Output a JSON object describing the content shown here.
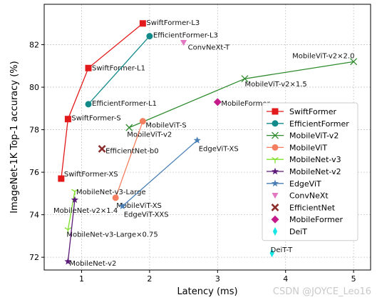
{
  "chart_data": {
    "type": "scatter",
    "title": "",
    "xlabel": "Latency (ms)",
    "ylabel": "ImageNet-1K Top-1 accuracy (%)",
    "xlim": [
      0.45,
      5.25
    ],
    "ylim": [
      71.4,
      83.9
    ],
    "xticks": [
      1,
      2,
      3,
      4,
      5
    ],
    "yticks": [
      72,
      74,
      76,
      78,
      80,
      82
    ],
    "grid": true,
    "legend_position": "center-right",
    "series": [
      {
        "name": "SwiftFormer",
        "color": "#e31a1c",
        "marker": "square",
        "line": true,
        "points": [
          {
            "x": 0.7,
            "y": 75.7,
            "label": "SwiftFormer-XS"
          },
          {
            "x": 0.8,
            "y": 78.5,
            "label": "SwiftFormer-S"
          },
          {
            "x": 1.1,
            "y": 80.9,
            "label": "SwiftFormer-L1"
          },
          {
            "x": 1.9,
            "y": 83.0,
            "label": "SwiftFormer-L3"
          }
        ]
      },
      {
        "name": "EfficientFormer",
        "color": "#138a8a",
        "marker": "circle",
        "line": true,
        "points": [
          {
            "x": 1.1,
            "y": 79.2,
            "label": "EfficientFormer-L1"
          },
          {
            "x": 2.0,
            "y": 82.4,
            "label": "EfficientFormer-L3"
          }
        ]
      },
      {
        "name": "MobileViT-v2",
        "color": "#2e8b2e",
        "marker": "x",
        "line": true,
        "points": [
          {
            "x": 1.7,
            "y": 78.1,
            "label": "MobileViT-v2"
          },
          {
            "x": 3.4,
            "y": 80.4,
            "label": "MobileViT-v2×1.5"
          },
          {
            "x": 5.0,
            "y": 81.2,
            "label": "MobileViT-v2×2.0"
          }
        ]
      },
      {
        "name": "MobileViT",
        "color": "#f47f60",
        "marker": "circle",
        "line": true,
        "points": [
          {
            "x": 1.5,
            "y": 74.8,
            "label": "MobileViT-XS"
          },
          {
            "x": 1.9,
            "y": 78.4,
            "label": "MobileViT-S"
          }
        ]
      },
      {
        "name": "MobileNet-v3",
        "color": "#7ee02a",
        "marker": "tri_down",
        "line": true,
        "points": [
          {
            "x": 0.8,
            "y": 73.3,
            "label": "MobileNet-v3-Large×0.75"
          },
          {
            "x": 0.9,
            "y": 75.1,
            "label": "MobileNet-v3-Large"
          }
        ]
      },
      {
        "name": "MobileNet-v2",
        "color": "#5b1a78",
        "marker": "star",
        "line": true,
        "points": [
          {
            "x": 0.8,
            "y": 71.8,
            "label": "MobileNet-v2"
          },
          {
            "x": 0.9,
            "y": 74.7,
            "label": "MobileNet-v2×1.4"
          }
        ]
      },
      {
        "name": "EdgeViT",
        "color": "#4a7fb5",
        "marker": "star",
        "line": true,
        "points": [
          {
            "x": 1.6,
            "y": 74.4,
            "label": "EdgeViT-XXS"
          },
          {
            "x": 2.7,
            "y": 77.5,
            "label": "EdgeViT-XS"
          }
        ]
      },
      {
        "name": "ConvNeXt",
        "color": "#e377c2",
        "marker": "triangle_down",
        "line": false,
        "points": [
          {
            "x": 2.5,
            "y": 82.1,
            "label": "ConvNeXt-T"
          }
        ]
      },
      {
        "name": "EfficientNet",
        "color": "#8c2d2d",
        "marker": "plus_x",
        "line": false,
        "points": [
          {
            "x": 1.3,
            "y": 77.1,
            "label": "EfficientNet-b0"
          }
        ]
      },
      {
        "name": "MobileFormer",
        "color": "#c51b8a",
        "marker": "diamond",
        "line": false,
        "points": [
          {
            "x": 3.0,
            "y": 79.3,
            "label": "MobileFormer"
          }
        ]
      },
      {
        "name": "DeiT",
        "color": "#17e6e6",
        "marker": "thin_diamond",
        "line": false,
        "points": [
          {
            "x": 3.8,
            "y": 72.2,
            "label": "DeiT-T"
          }
        ]
      }
    ]
  },
  "watermark": "CSDN @JOYCE_Leo16"
}
